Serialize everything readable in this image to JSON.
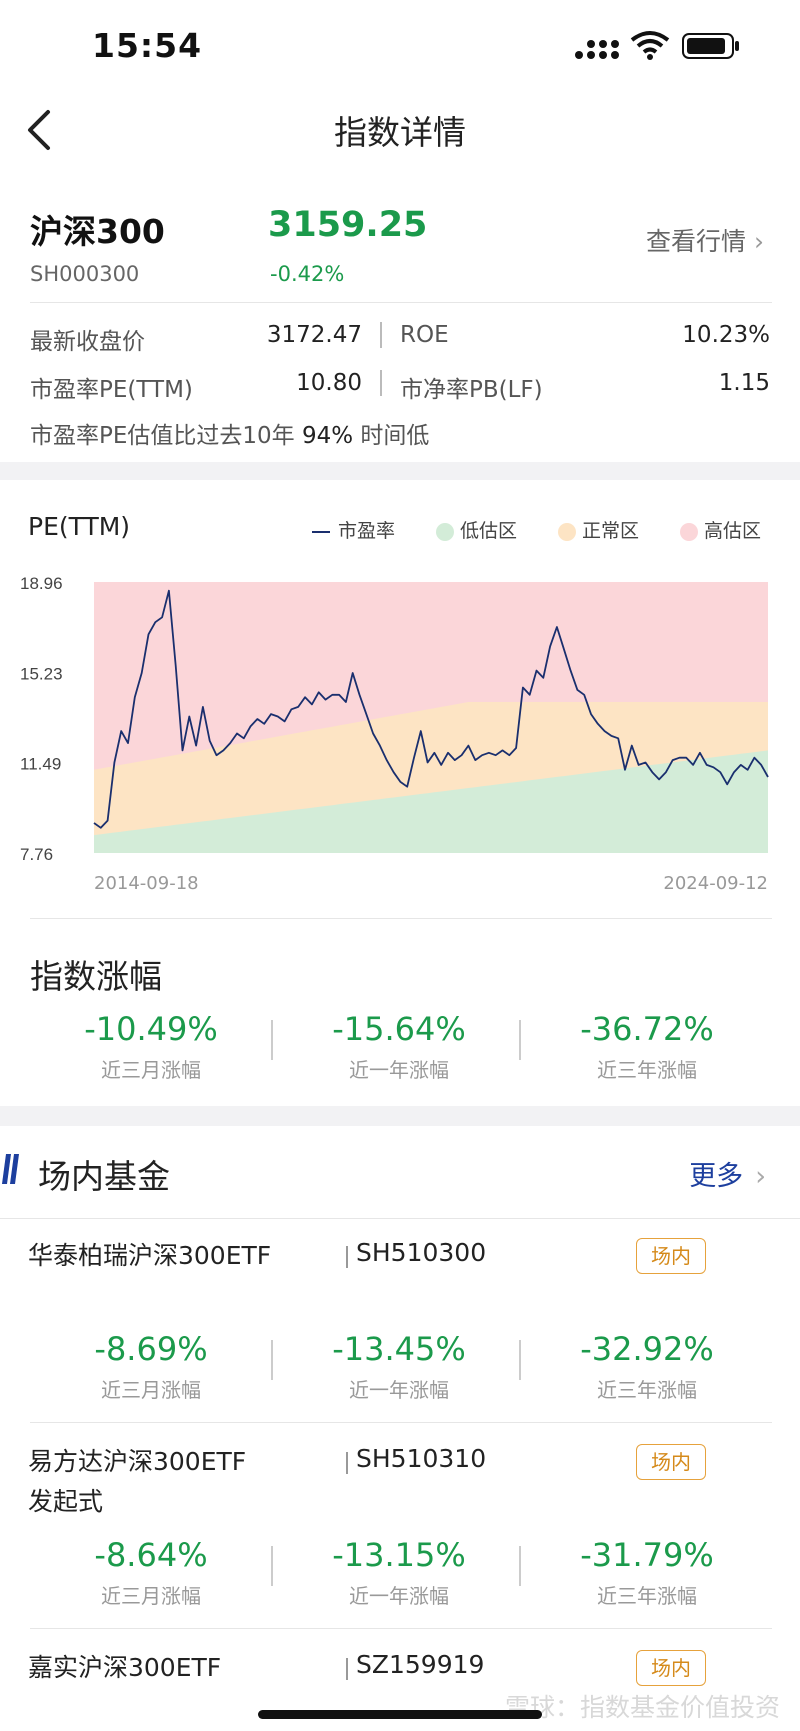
{
  "status_bar": {
    "time": "15:54"
  },
  "nav": {
    "title": "指数详情"
  },
  "index": {
    "name": "沪深300",
    "code": "SH000300",
    "price": "3159.25",
    "change": "-0.42%",
    "quote_link": "查看行情"
  },
  "stats": {
    "latest_close_label": "最新收盘价",
    "latest_close_value": "3172.47",
    "roe_label": "ROE",
    "roe_value": "10.23%",
    "pe_label": "市盈率PE(TTM)",
    "pe_value": "10.80",
    "pb_label": "市净率PB(LF)",
    "pb_value": "1.15",
    "valuation_note_prefix": "市盈率PE估值比过去10年",
    "valuation_percent": "94%",
    "valuation_note_suffix": "时间低"
  },
  "pe_chart": {
    "title": "PE(TTM)",
    "legend": {
      "line": "市盈率",
      "low": "低估区",
      "normal": "正常区",
      "high": "高估区"
    },
    "colors": {
      "line": "#1a2f6e",
      "low": "#d3ecd8",
      "normal": "#fde4c4",
      "high": "#fbd6d9"
    }
  },
  "chart_data": {
    "type": "line",
    "x_start": "2014-09-18",
    "x_end": "2024-09-12",
    "y_ticks": [
      "18.96",
      "15.23",
      "11.49",
      "7.76"
    ],
    "ylim": [
      7.76,
      18.96
    ],
    "series": [
      {
        "name": "市盈率",
        "values": [
          9.0,
          8.8,
          9.1,
          11.5,
          12.8,
          12.3,
          14.2,
          15.2,
          16.8,
          17.3,
          17.5,
          18.6,
          15.5,
          12.0,
          13.4,
          12.2,
          13.8,
          12.4,
          11.8,
          12.0,
          12.3,
          12.7,
          12.5,
          13.0,
          13.3,
          13.1,
          13.5,
          13.4,
          13.2,
          13.7,
          13.8,
          14.2,
          13.9,
          14.4,
          14.1,
          14.3,
          14.3,
          14.0,
          15.2,
          14.3,
          13.5,
          12.7,
          12.2,
          11.6,
          11.1,
          10.7,
          10.5,
          11.7,
          12.8,
          11.5,
          11.9,
          11.4,
          11.9,
          11.6,
          11.8,
          12.2,
          11.6,
          11.8,
          11.9,
          11.8,
          12.0,
          11.8,
          12.1,
          14.6,
          14.3,
          15.3,
          15.0,
          16.3,
          17.1,
          16.2,
          15.3,
          14.5,
          14.3,
          13.5,
          13.1,
          12.8,
          12.6,
          12.5,
          11.2,
          12.2,
          11.4,
          11.5,
          11.1,
          10.8,
          11.1,
          11.6,
          11.7,
          11.7,
          11.4,
          11.9,
          11.4,
          11.3,
          11.1,
          10.6,
          11.1,
          11.4,
          11.2,
          11.7,
          11.4,
          10.9
        ]
      }
    ],
    "zones": {
      "low_upper_start": 8.5,
      "low_upper_end": 12.0,
      "normal_upper_start": 11.2,
      "normal_upper_end": 14.0
    }
  },
  "index_returns": {
    "title": "指数涨幅",
    "items": [
      {
        "value": "-10.49%",
        "label": "近三月涨幅"
      },
      {
        "value": "-15.64%",
        "label": "近一年涨幅"
      },
      {
        "value": "-36.72%",
        "label": "近三年涨幅"
      }
    ]
  },
  "funds": {
    "title": "场内基金",
    "more": "更多",
    "items": [
      {
        "name": "华泰柏瑞沪深300ETF",
        "code": "SH510300",
        "tag": "场内",
        "returns": [
          {
            "value": "-8.69%",
            "label": "近三月涨幅"
          },
          {
            "value": "-13.45%",
            "label": "近一年涨幅"
          },
          {
            "value": "-32.92%",
            "label": "近三年涨幅"
          }
        ]
      },
      {
        "name": "易方达沪深300ETF",
        "name_line2": "发起式",
        "code": "SH510310",
        "tag": "场内",
        "returns": [
          {
            "value": "-8.64%",
            "label": "近三月涨幅"
          },
          {
            "value": "-13.15%",
            "label": "近一年涨幅"
          },
          {
            "value": "-31.79%",
            "label": "近三年涨幅"
          }
        ]
      },
      {
        "name": "嘉实沪深300ETF",
        "code": "SZ159919",
        "tag": "场内"
      }
    ]
  },
  "watermark": "雪球：指数基金价值投资"
}
